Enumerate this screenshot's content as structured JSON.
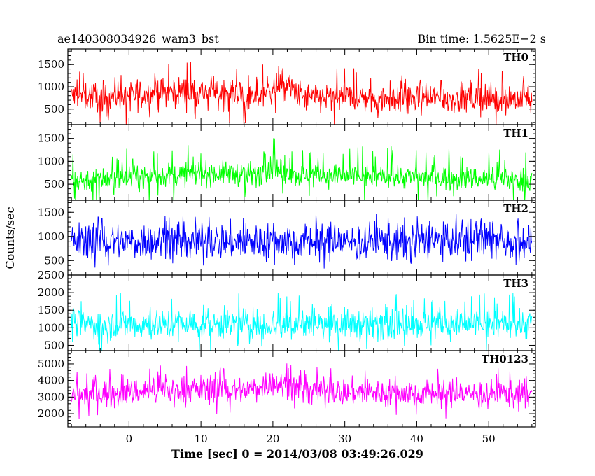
{
  "header": {
    "left_title": "ae140308034926_wam3_bst",
    "right_title": "Bin time: 1.5625E−2 s"
  },
  "axes": {
    "ylabel": "Counts/sec",
    "xlabel": "Time [sec] 0 = 2014/03/08 03:49:26.029"
  },
  "chart_data": {
    "type": "line",
    "x": {
      "range": [
        -8.5,
        56.5
      ],
      "ticks": [
        0,
        10,
        20,
        30,
        40,
        50
      ],
      "minor_step": 2,
      "data_span": [
        -8,
        56
      ]
    },
    "panels": [
      {
        "name": "TH0",
        "color": "#ff0000",
        "ylim": [
          150,
          1850
        ],
        "ticks": [
          500,
          1000,
          1500
        ],
        "minor_step": 100,
        "profile": [
          [
            -8,
            780
          ],
          [
            0,
            820
          ],
          [
            8,
            900
          ],
          [
            15,
            860
          ],
          [
            17,
            700
          ],
          [
            20,
            1000
          ],
          [
            22,
            1020
          ],
          [
            24,
            760
          ],
          [
            40,
            740
          ],
          [
            56,
            730
          ]
        ],
        "spread": 340,
        "spike": 560
      },
      {
        "name": "TH1",
        "color": "#00ff00",
        "ylim": [
          150,
          1800
        ],
        "ticks": [
          500,
          1000,
          1500
        ],
        "minor_step": 100,
        "profile": [
          [
            -8,
            580
          ],
          [
            0,
            640
          ],
          [
            10,
            740
          ],
          [
            18,
            720
          ],
          [
            20,
            880
          ],
          [
            22,
            700
          ],
          [
            56,
            600
          ]
        ],
        "spread": 260,
        "spike": 560
      },
      {
        "name": "TH2",
        "color": "#0000ff",
        "ylim": [
          200,
          1750
        ],
        "ticks": [
          500,
          1000,
          1500
        ],
        "minor_step": 100,
        "profile": [
          [
            -8,
            900
          ],
          [
            56,
            900
          ]
        ],
        "spread": 380,
        "spike": 480
      },
      {
        "name": "TH3",
        "color": "#00ffff",
        "ylim": [
          350,
          2500
        ],
        "ticks": [
          500,
          1000,
          1500,
          2000,
          2500
        ],
        "minor_step": 100,
        "profile": [
          [
            -8,
            1100
          ],
          [
            56,
            1100
          ]
        ],
        "spread": 440,
        "spike": 750
      },
      {
        "name": "TH0123",
        "color": "#ff00ff",
        "ylim": [
          1200,
          5800
        ],
        "ticks": [
          2000,
          3000,
          4000,
          5000
        ],
        "minor_step": 200,
        "profile": [
          [
            -8,
            3100
          ],
          [
            8,
            3500
          ],
          [
            16,
            3400
          ],
          [
            20,
            3900
          ],
          [
            22,
            3600
          ],
          [
            30,
            3300
          ],
          [
            56,
            3200
          ]
        ],
        "spread": 820,
        "spike": 1300
      }
    ]
  }
}
